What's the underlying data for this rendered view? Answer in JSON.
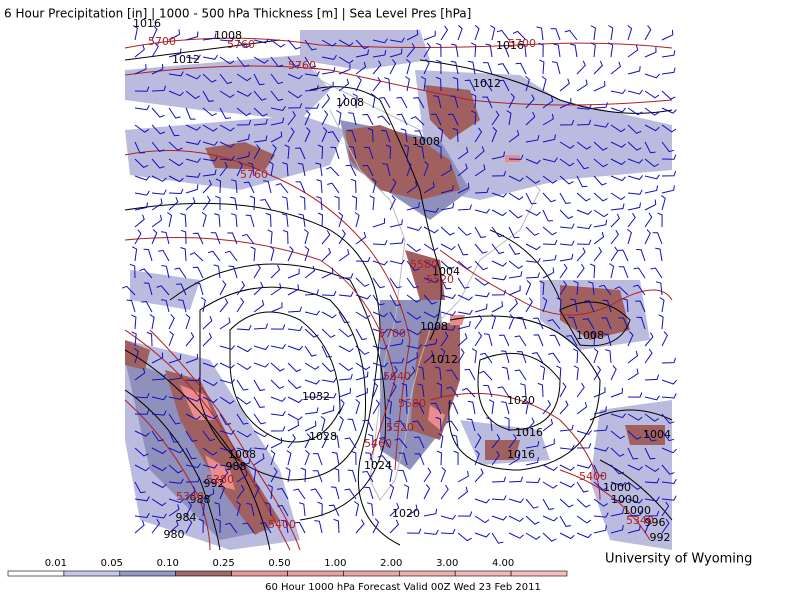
{
  "title": "6 Hour Precipitation [in] | 1000 - 500 hPa Thickness [m] | Sea Level Pres [hPa]",
  "credit": "University of Wyoming",
  "footer": "60 Hour 1000 hPa Forecast Valid 00Z Wed 23 Feb 2011",
  "legend": {
    "levels": [
      "0.01",
      "0.05",
      "0.10",
      "0.25",
      "0.50",
      "1.00",
      "2.00",
      "3.00",
      "4.00"
    ]
  },
  "map": {
    "isobar_labels": [
      "1016",
      "1008",
      "1012",
      "1016",
      "1012",
      "1008",
      "1008",
      "1004",
      "1008",
      "1012",
      "1032",
      "1028",
      "1024",
      "1020",
      "1020",
      "1016",
      "1016",
      "1008",
      "1004",
      "1008",
      "988",
      "992",
      "988",
      "984",
      "980",
      "1000",
      "1000",
      "1000",
      "996",
      "992"
    ],
    "thickness_labels": [
      "5700",
      "5760",
      "5760",
      "5760",
      "5700",
      "5580",
      "5520",
      "5700",
      "5640",
      "5580",
      "5520",
      "5460",
      "5280",
      "5340",
      "5400",
      "5400",
      "5340"
    ]
  }
}
